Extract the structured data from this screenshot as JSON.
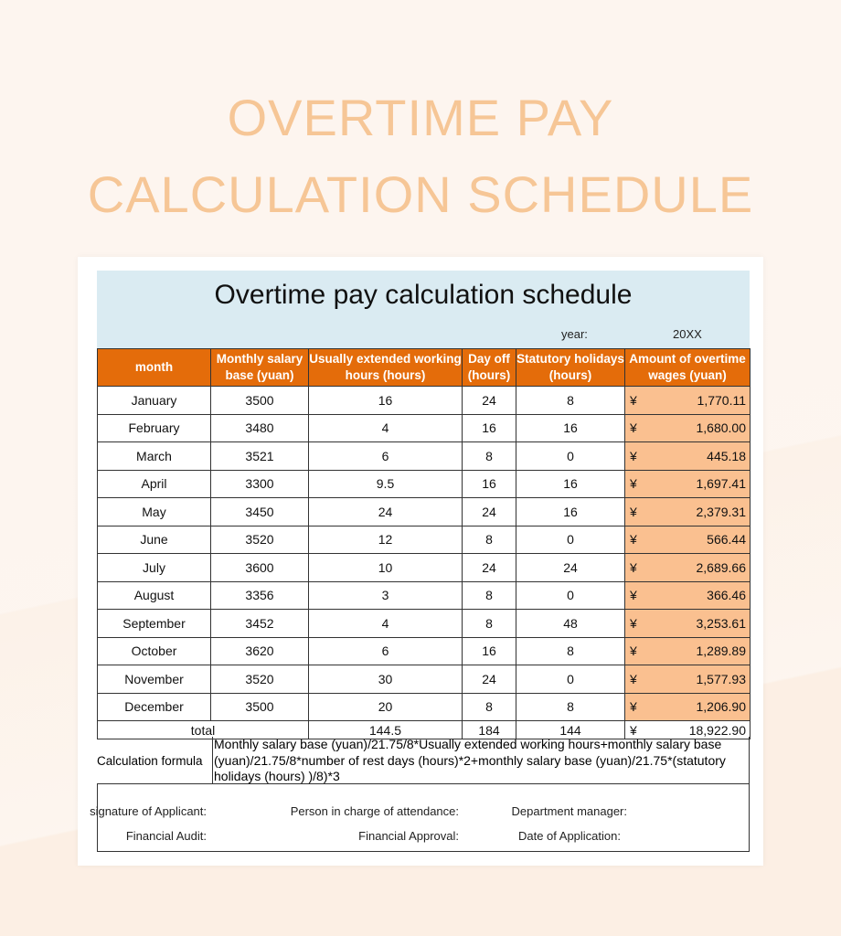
{
  "page": {
    "title_line1": "OVERTIME PAY",
    "title_line2": "CALCULATION SCHEDULE"
  },
  "sheet": {
    "title": "Overtime pay calculation schedule",
    "year_label": "year:",
    "year_value": "20XX",
    "headers": [
      "month",
      "Monthly salary base (yuan)",
      "Usually extended working hours (hours)",
      "Day off (hours)",
      "Statutory holidays (hours)",
      "Amount of overtime wages (yuan)"
    ],
    "currency_symbol": "¥",
    "rows": [
      [
        "January",
        "3500",
        "16",
        "24",
        "8",
        "1,770.11"
      ],
      [
        "February",
        "3480",
        "4",
        "16",
        "16",
        "1,680.00"
      ],
      [
        "March",
        "3521",
        "6",
        "8",
        "0",
        "445.18"
      ],
      [
        "April",
        "3300",
        "9.5",
        "16",
        "16",
        "1,697.41"
      ],
      [
        "May",
        "3450",
        "24",
        "24",
        "16",
        "2,379.31"
      ],
      [
        "June",
        "3520",
        "12",
        "8",
        "0",
        "566.44"
      ],
      [
        "July",
        "3600",
        "10",
        "24",
        "24",
        "2,689.66"
      ],
      [
        "August",
        "3356",
        "3",
        "8",
        "0",
        "366.46"
      ],
      [
        "September",
        "3452",
        "4",
        "8",
        "48",
        "3,253.61"
      ],
      [
        "October",
        "3620",
        "6",
        "16",
        "8",
        "1,289.89"
      ],
      [
        "November",
        "3520",
        "30",
        "24",
        "0",
        "1,577.93"
      ],
      [
        "December",
        "3500",
        "20",
        "8",
        "8",
        "1,206.90"
      ]
    ],
    "total": {
      "label": "total",
      "extended_hours": "144.5",
      "day_off": "184",
      "holidays": "144",
      "amount": "18,922.90"
    },
    "formula_label": "Calculation formula",
    "formula_text": "Monthly salary base (yuan)/21.75/8*Usually extended working hours+monthly salary base (yuan)/21.75/8*number of rest days (hours)*2+monthly salary base (yuan)/21.75*(statutory holidays (hours) )/8)*3",
    "signatures": [
      "signature of Applicant:",
      "Person in charge of attendance:",
      "Department manager:",
      "Financial Audit:",
      "Financial Approval:",
      "Date of Application:"
    ]
  },
  "colors": {
    "header_orange": "#e46c0a",
    "amount_fill": "#fac090",
    "title_band": "#daebf2",
    "page_title": "#f6c696"
  }
}
